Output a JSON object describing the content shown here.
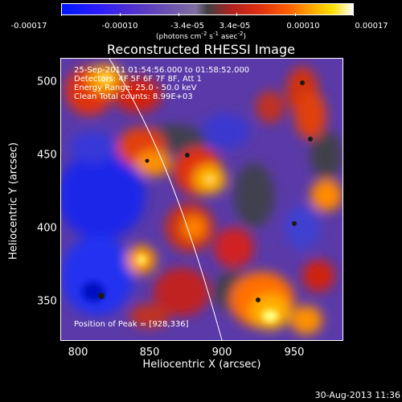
{
  "colorbar": {
    "ticks": [
      "-0.00017",
      "-0.00010",
      "-3.4e-05",
      "3.4e-05",
      "0.00010",
      "0.00017"
    ],
    "units": "(photons cm",
    "units_exp1": "-2",
    "units_mid": " s",
    "units_exp2": "-1",
    "units_mid2": " asec",
    "units_exp3": "-2",
    "units_end": ")",
    "colors": [
      "#0018ff",
      "#6a50b0",
      "#404040",
      "#e03010",
      "#ffa800",
      "#ffffff"
    ]
  },
  "plot": {
    "title": "Reconstructed RHESSI Image",
    "xlabel": "Heliocentric X (arcsec)",
    "ylabel": "Heliocentric Y (arcsec)",
    "xticks": [
      "800",
      "850",
      "900",
      "950"
    ],
    "yticks": [
      "500",
      "450",
      "400",
      "350"
    ],
    "info": [
      "25-Sep-2011 01:54:56.000 to 01:58:52.000",
      "Detectors: 4F 5F 6F 7F 8F, Att 1",
      "Energy Range: 25.0 - 50.0 keV",
      "Clean     Total counts: 8.99E+03"
    ],
    "peak": "Position of Peak = [928,336]"
  },
  "footer": {
    "date": "30-Aug-2013 11:36"
  }
}
